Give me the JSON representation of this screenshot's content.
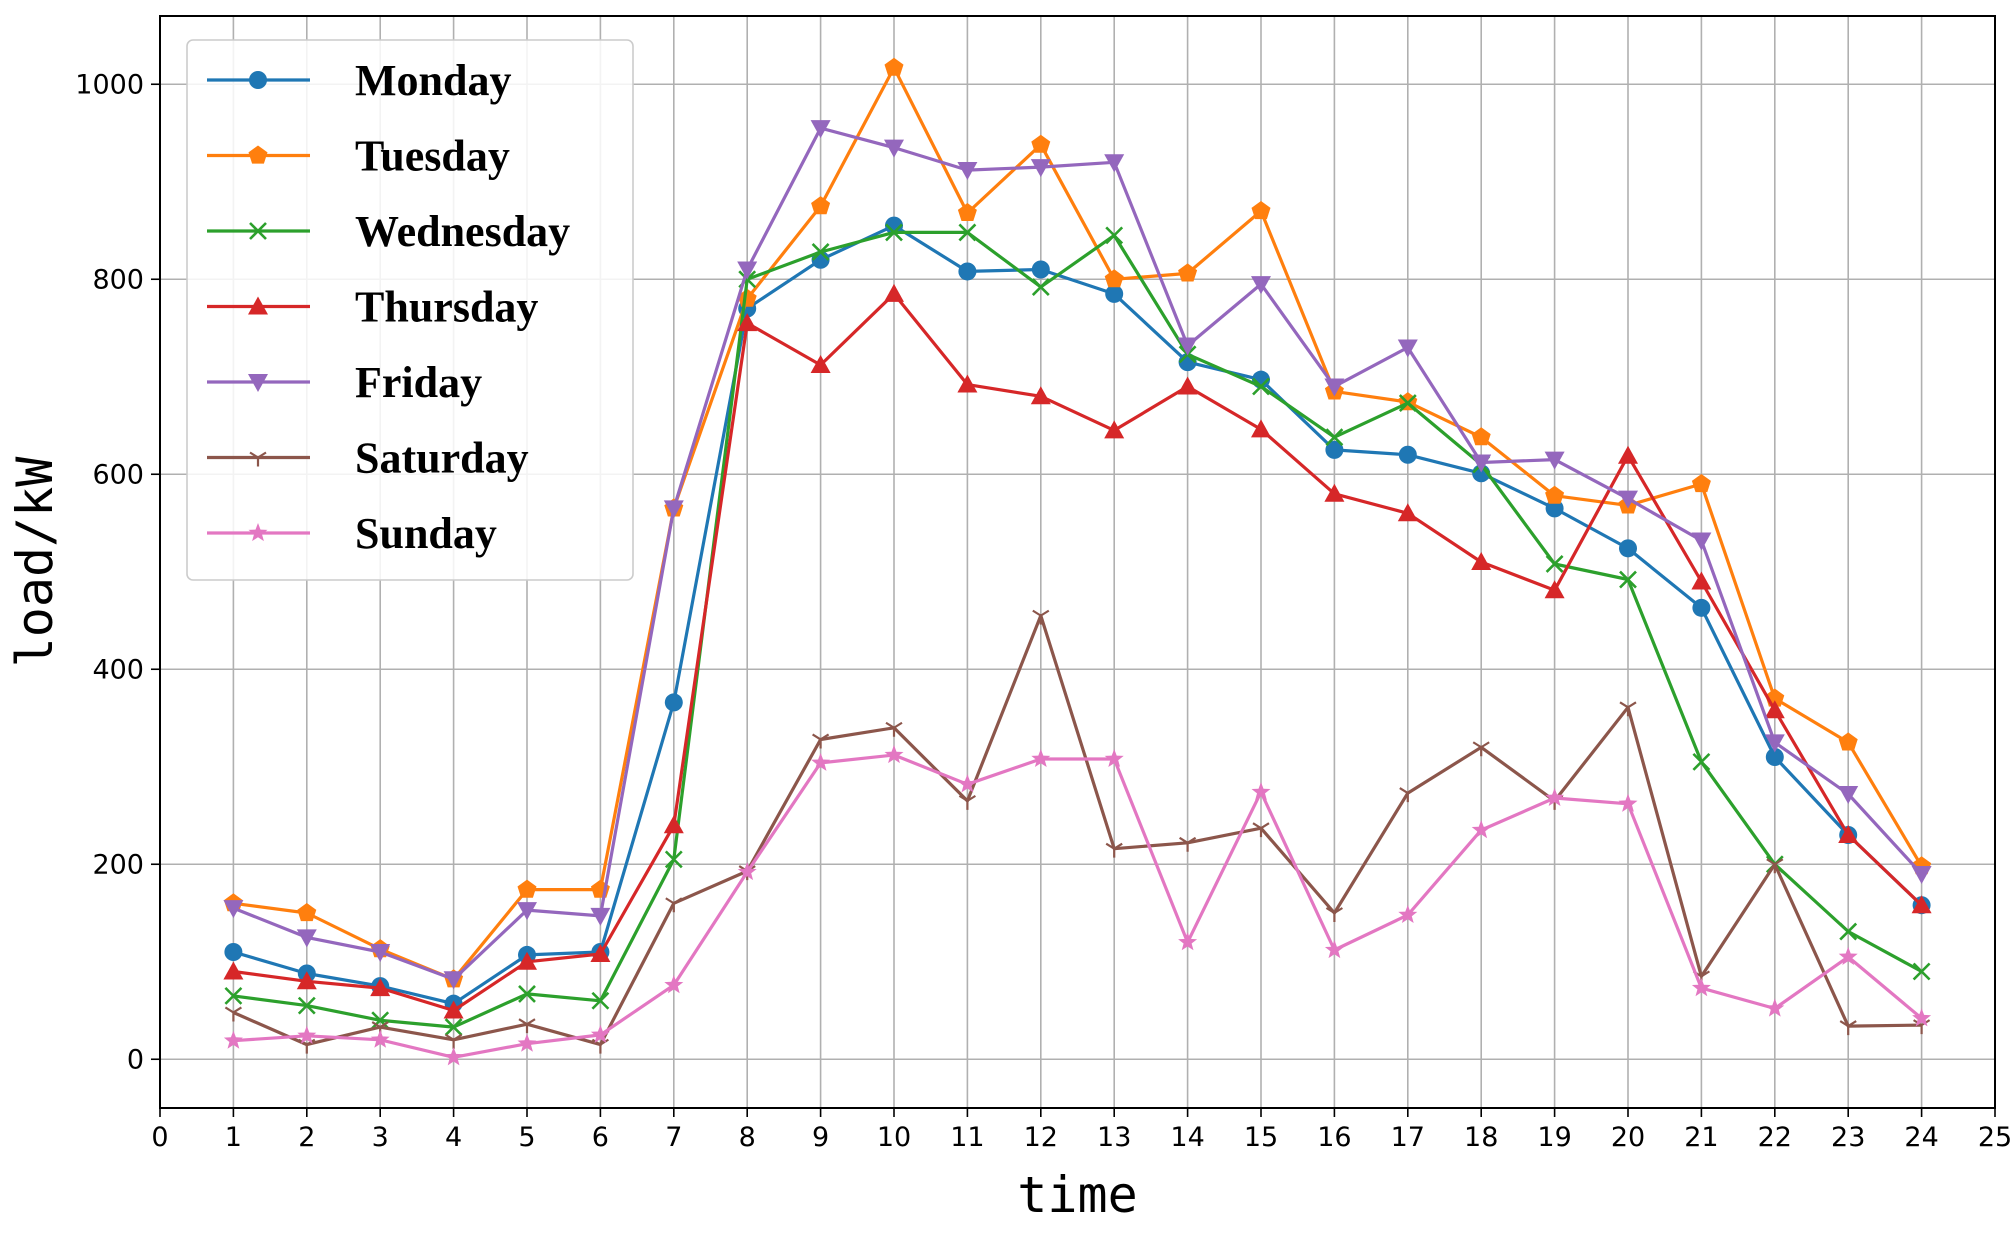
{
  "chart_data": {
    "type": "line",
    "xlabel": "time",
    "ylabel": "load/kW",
    "xlim": [
      0,
      25
    ],
    "ylim": [
      -50,
      1070
    ],
    "xticks": [
      0,
      1,
      2,
      3,
      4,
      5,
      6,
      7,
      8,
      9,
      10,
      11,
      12,
      13,
      14,
      15,
      16,
      17,
      18,
      19,
      20,
      21,
      22,
      23,
      24,
      25
    ],
    "yticks": [
      0,
      200,
      400,
      600,
      800,
      1000
    ],
    "grid": true,
    "legend_position": "top-left",
    "x": [
      1,
      2,
      3,
      4,
      5,
      6,
      7,
      8,
      9,
      10,
      11,
      12,
      13,
      14,
      15,
      16,
      17,
      18,
      19,
      20,
      21,
      22,
      23,
      24
    ],
    "series": [
      {
        "name": "Monday",
        "color": "#1f77b4",
        "marker": "circle",
        "values": [
          110,
          88,
          75,
          57,
          107,
          110,
          366,
          770,
          820,
          855,
          808,
          810,
          785,
          715,
          697,
          625,
          620,
          601,
          565,
          524,
          463,
          310,
          230,
          158
        ]
      },
      {
        "name": "Tuesday",
        "color": "#ff7f0e",
        "marker": "pentagon",
        "values": [
          160,
          150,
          113,
          82,
          174,
          174,
          565,
          780,
          875,
          1017,
          868,
          938,
          800,
          806,
          870,
          685,
          674,
          638,
          578,
          568,
          590,
          370,
          325,
          198
        ]
      },
      {
        "name": "Wednesday",
        "color": "#2ca02c",
        "marker": "x",
        "values": [
          65,
          55,
          40,
          33,
          67,
          60,
          205,
          800,
          828,
          848,
          848,
          792,
          845,
          723,
          690,
          638,
          673,
          610,
          508,
          492,
          305,
          200,
          131,
          90
        ]
      },
      {
        "name": "Thursday",
        "color": "#d62728",
        "marker": "triangle-up",
        "values": [
          90,
          80,
          73,
          50,
          100,
          108,
          240,
          755,
          712,
          785,
          692,
          680,
          645,
          690,
          646,
          580,
          560,
          510,
          481,
          619,
          490,
          358,
          230,
          158
        ]
      },
      {
        "name": "Friday",
        "color": "#9467bd",
        "marker": "triangle-down",
        "values": [
          155,
          125,
          110,
          82,
          153,
          147,
          565,
          810,
          955,
          935,
          912,
          915,
          920,
          732,
          795,
          690,
          730,
          612,
          615,
          575,
          532,
          325,
          272,
          190
        ]
      },
      {
        "name": "Saturday",
        "color": "#8c564b",
        "marker": "tri-down",
        "values": [
          48,
          15,
          33,
          20,
          36,
          15,
          160,
          193,
          328,
          340,
          265,
          455,
          216,
          222,
          237,
          150,
          273,
          320,
          265,
          361,
          85,
          200,
          34,
          35
        ]
      },
      {
        "name": "Sunday",
        "color": "#e377c2",
        "marker": "star",
        "values": [
          19,
          24,
          20,
          2,
          16,
          25,
          76,
          192,
          304,
          312,
          282,
          308,
          308,
          120,
          274,
          112,
          148,
          235,
          268,
          262,
          73,
          52,
          105,
          42
        ]
      }
    ]
  }
}
